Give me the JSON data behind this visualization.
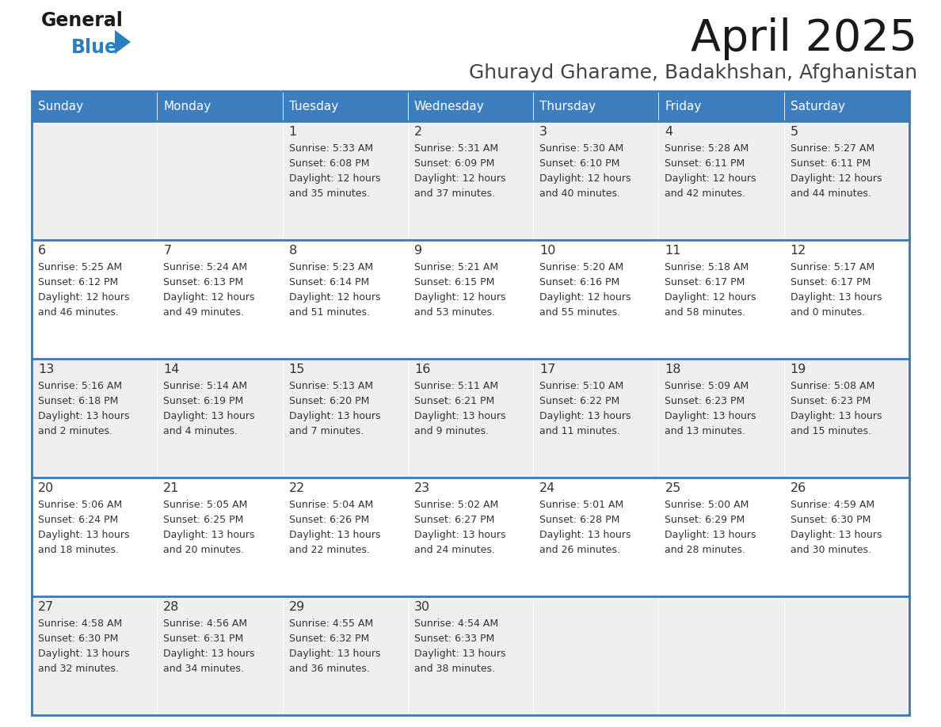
{
  "title": "April 2025",
  "subtitle": "Ghurayd Gharame, Badakhshan, Afghanistan",
  "days_of_week": [
    "Sunday",
    "Monday",
    "Tuesday",
    "Wednesday",
    "Thursday",
    "Friday",
    "Saturday"
  ],
  "header_bg": "#3d7ebf",
  "header_text_color": "#ffffff",
  "cell_bg_odd": "#efefef",
  "cell_bg_even": "#ffffff",
  "border_color": "#3a7ab8",
  "text_color": "#333333",
  "day_number_color": "#333333",
  "calendar": [
    [
      {
        "day": null,
        "sunrise": null,
        "sunset": null,
        "daylight_h": null,
        "daylight_m": null
      },
      {
        "day": null,
        "sunrise": null,
        "sunset": null,
        "daylight_h": null,
        "daylight_m": null
      },
      {
        "day": 1,
        "sunrise": "5:33 AM",
        "sunset": "6:08 PM",
        "daylight_h": "12 hours",
        "daylight_m": "and 35 minutes."
      },
      {
        "day": 2,
        "sunrise": "5:31 AM",
        "sunset": "6:09 PM",
        "daylight_h": "12 hours",
        "daylight_m": "and 37 minutes."
      },
      {
        "day": 3,
        "sunrise": "5:30 AM",
        "sunset": "6:10 PM",
        "daylight_h": "12 hours",
        "daylight_m": "and 40 minutes."
      },
      {
        "day": 4,
        "sunrise": "5:28 AM",
        "sunset": "6:11 PM",
        "daylight_h": "12 hours",
        "daylight_m": "and 42 minutes."
      },
      {
        "day": 5,
        "sunrise": "5:27 AM",
        "sunset": "6:11 PM",
        "daylight_h": "12 hours",
        "daylight_m": "and 44 minutes."
      }
    ],
    [
      {
        "day": 6,
        "sunrise": "5:25 AM",
        "sunset": "6:12 PM",
        "daylight_h": "12 hours",
        "daylight_m": "and 46 minutes."
      },
      {
        "day": 7,
        "sunrise": "5:24 AM",
        "sunset": "6:13 PM",
        "daylight_h": "12 hours",
        "daylight_m": "and 49 minutes."
      },
      {
        "day": 8,
        "sunrise": "5:23 AM",
        "sunset": "6:14 PM",
        "daylight_h": "12 hours",
        "daylight_m": "and 51 minutes."
      },
      {
        "day": 9,
        "sunrise": "5:21 AM",
        "sunset": "6:15 PM",
        "daylight_h": "12 hours",
        "daylight_m": "and 53 minutes."
      },
      {
        "day": 10,
        "sunrise": "5:20 AM",
        "sunset": "6:16 PM",
        "daylight_h": "12 hours",
        "daylight_m": "and 55 minutes."
      },
      {
        "day": 11,
        "sunrise": "5:18 AM",
        "sunset": "6:17 PM",
        "daylight_h": "12 hours",
        "daylight_m": "and 58 minutes."
      },
      {
        "day": 12,
        "sunrise": "5:17 AM",
        "sunset": "6:17 PM",
        "daylight_h": "13 hours",
        "daylight_m": "and 0 minutes."
      }
    ],
    [
      {
        "day": 13,
        "sunrise": "5:16 AM",
        "sunset": "6:18 PM",
        "daylight_h": "13 hours",
        "daylight_m": "and 2 minutes."
      },
      {
        "day": 14,
        "sunrise": "5:14 AM",
        "sunset": "6:19 PM",
        "daylight_h": "13 hours",
        "daylight_m": "and 4 minutes."
      },
      {
        "day": 15,
        "sunrise": "5:13 AM",
        "sunset": "6:20 PM",
        "daylight_h": "13 hours",
        "daylight_m": "and 7 minutes."
      },
      {
        "day": 16,
        "sunrise": "5:11 AM",
        "sunset": "6:21 PM",
        "daylight_h": "13 hours",
        "daylight_m": "and 9 minutes."
      },
      {
        "day": 17,
        "sunrise": "5:10 AM",
        "sunset": "6:22 PM",
        "daylight_h": "13 hours",
        "daylight_m": "and 11 minutes."
      },
      {
        "day": 18,
        "sunrise": "5:09 AM",
        "sunset": "6:23 PM",
        "daylight_h": "13 hours",
        "daylight_m": "and 13 minutes."
      },
      {
        "day": 19,
        "sunrise": "5:08 AM",
        "sunset": "6:23 PM",
        "daylight_h": "13 hours",
        "daylight_m": "and 15 minutes."
      }
    ],
    [
      {
        "day": 20,
        "sunrise": "5:06 AM",
        "sunset": "6:24 PM",
        "daylight_h": "13 hours",
        "daylight_m": "and 18 minutes."
      },
      {
        "day": 21,
        "sunrise": "5:05 AM",
        "sunset": "6:25 PM",
        "daylight_h": "13 hours",
        "daylight_m": "and 20 minutes."
      },
      {
        "day": 22,
        "sunrise": "5:04 AM",
        "sunset": "6:26 PM",
        "daylight_h": "13 hours",
        "daylight_m": "and 22 minutes."
      },
      {
        "day": 23,
        "sunrise": "5:02 AM",
        "sunset": "6:27 PM",
        "daylight_h": "13 hours",
        "daylight_m": "and 24 minutes."
      },
      {
        "day": 24,
        "sunrise": "5:01 AM",
        "sunset": "6:28 PM",
        "daylight_h": "13 hours",
        "daylight_m": "and 26 minutes."
      },
      {
        "day": 25,
        "sunrise": "5:00 AM",
        "sunset": "6:29 PM",
        "daylight_h": "13 hours",
        "daylight_m": "and 28 minutes."
      },
      {
        "day": 26,
        "sunrise": "4:59 AM",
        "sunset": "6:30 PM",
        "daylight_h": "13 hours",
        "daylight_m": "and 30 minutes."
      }
    ],
    [
      {
        "day": 27,
        "sunrise": "4:58 AM",
        "sunset": "6:30 PM",
        "daylight_h": "13 hours",
        "daylight_m": "and 32 minutes."
      },
      {
        "day": 28,
        "sunrise": "4:56 AM",
        "sunset": "6:31 PM",
        "daylight_h": "13 hours",
        "daylight_m": "and 34 minutes."
      },
      {
        "day": 29,
        "sunrise": "4:55 AM",
        "sunset": "6:32 PM",
        "daylight_h": "13 hours",
        "daylight_m": "and 36 minutes."
      },
      {
        "day": 30,
        "sunrise": "4:54 AM",
        "sunset": "6:33 PM",
        "daylight_h": "13 hours",
        "daylight_m": "and 38 minutes."
      },
      {
        "day": null,
        "sunrise": null,
        "sunset": null,
        "daylight_h": null,
        "daylight_m": null
      },
      {
        "day": null,
        "sunrise": null,
        "sunset": null,
        "daylight_h": null,
        "daylight_m": null
      },
      {
        "day": null,
        "sunrise": null,
        "sunset": null,
        "daylight_h": null,
        "daylight_m": null
      }
    ]
  ]
}
